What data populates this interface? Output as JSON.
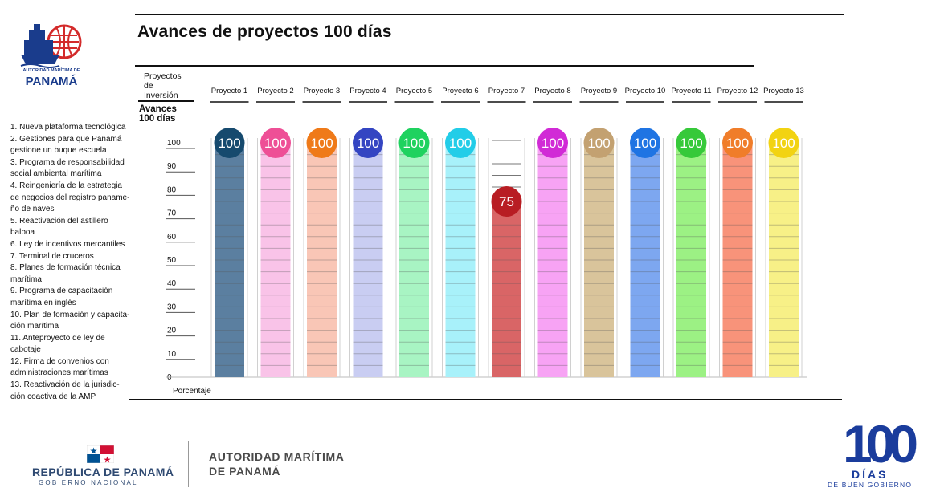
{
  "header": {
    "title": "Avances de proyectos 100 días"
  },
  "agency_logo": {
    "line1": "AUTORIDAD MARÍTIMA DE",
    "line2": "PANAMÁ"
  },
  "legend": {
    "items": [
      "1. Nueva plataforma tecnológica",
      "2. Gestiones para que Panamá\ngestione un buque escuela",
      "3. Programa de responsabilidad\nsocial ambiental marítima",
      "4. Reingeniería de la estrategia\nde negocios del registro paname-\nño de naves",
      "5. Reactivación del astillero\nbalboa",
      "6. Ley de incentivos mercantiles",
      "7. Terminal de cruceros",
      "8. Planes de formación técnica\nmarítima",
      "9. Programa de capacitación\nmarítima en inglés",
      "10. Plan de formación y capacita-\nción marítima",
      "11. Anteproyecto de ley de\ncabotaje",
      "12. Firma de convenios con\nadministraciones marítimas",
      "13. Reactivación de la jurisdic-\nción coactiva de la AMP"
    ]
  },
  "chart_data": {
    "type": "bar",
    "title": "Avances de proyectos 100 días",
    "xlabel": "Proyectos de Inversión",
    "ylabel": "Avances 100 días",
    "yunit": "Porcentaje",
    "ylim": [
      0,
      100
    ],
    "yticks": [
      0,
      10,
      20,
      30,
      40,
      50,
      60,
      70,
      80,
      90,
      100
    ],
    "categories": [
      "Proyecto 1",
      "Proyecto 2",
      "Proyecto 3",
      "Proyecto 4",
      "Proyecto 5",
      "Proyecto 6",
      "Proyecto 7",
      "Proyecto 8",
      "Proyecto 9",
      "Proyecto 10",
      "Proyecto 11",
      "Proyecto 12",
      "Proyecto 13"
    ],
    "values": [
      100,
      100,
      100,
      100,
      100,
      100,
      75,
      100,
      100,
      100,
      100,
      100,
      100
    ],
    "bar_colors": [
      "#5b7fa0",
      "#f9c3e8",
      "#f9c6b6",
      "#c9cdf2",
      "#a8f4c3",
      "#a8f1fa",
      "#d96566",
      "#f7a3f4",
      "#d9c49b",
      "#7da7f0",
      "#9cf184",
      "#f8937a",
      "#f7f087"
    ],
    "bubble_colors": [
      "#164a6e",
      "#ee4f96",
      "#ef7a19",
      "#3445c2",
      "#1fd25f",
      "#22cde8",
      "#b81d23",
      "#d12ad6",
      "#c3a171",
      "#1f74e3",
      "#36c93a",
      "#f07d2a",
      "#f2d312"
    ],
    "grid": true
  },
  "axis_labels": {
    "categories_header": "Proyectos\nde\nInversión",
    "values_header": "Avances\n100 días",
    "unit": "Porcentaje"
  },
  "footer": {
    "republic": "REPÚBLICA DE PANAMÁ",
    "government": "GOBIERNO NACIONAL",
    "authority": "AUTORIDAD MARÍTIMA\nDE PANAMÁ",
    "badge_number": "100",
    "badge_dias": "DÍAS",
    "badge_sub": "DE BUEN GOBIERNO"
  },
  "colors": {
    "brand_blue": "#1a3c9c",
    "text_dark": "#111111"
  }
}
